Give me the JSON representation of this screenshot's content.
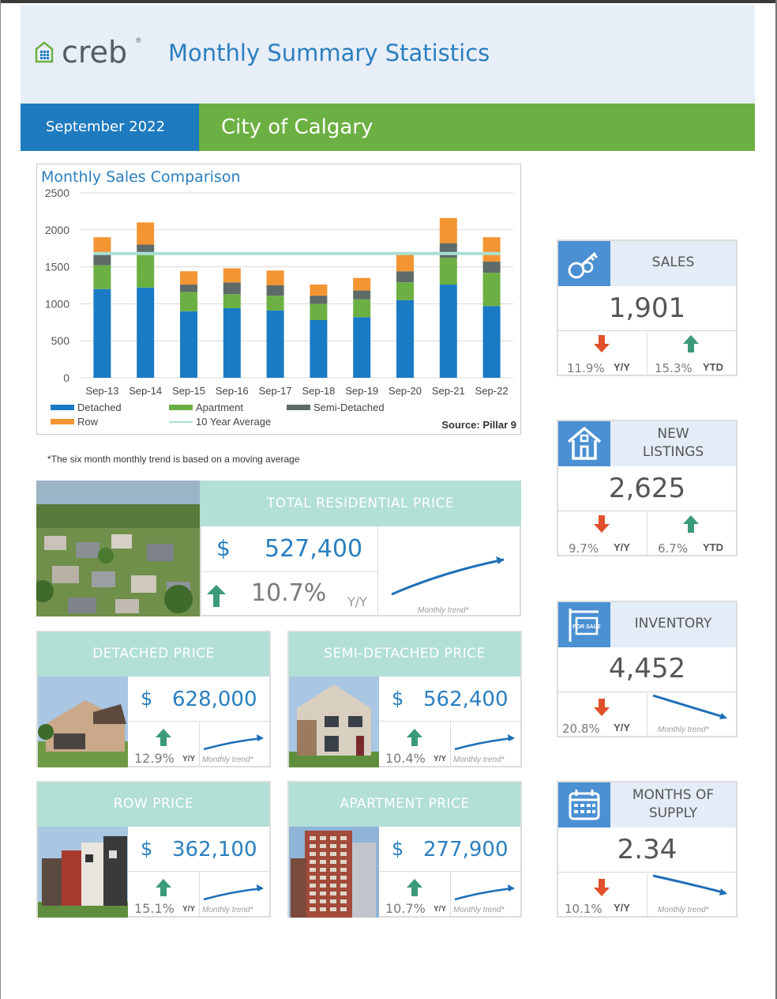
{
  "header": {
    "brand": "creb",
    "brand_mark": "®",
    "title": "Monthly Summary Statistics"
  },
  "band": {
    "date": "September 2022",
    "city": "City of Calgary"
  },
  "chart_data": {
    "type": "bar",
    "stacked": true,
    "title": "Monthly Sales Comparison",
    "categories": [
      "Sep-13",
      "Sep-14",
      "Sep-15",
      "Sep-16",
      "Sep-17",
      "Sep-18",
      "Sep-19",
      "Sep-20",
      "Sep-21",
      "Sep-22"
    ],
    "series": [
      {
        "name": "Detached",
        "color": "#1a7ac4",
        "values": [
          1200,
          1220,
          900,
          940,
          910,
          780,
          820,
          1050,
          1260,
          970
        ]
      },
      {
        "name": "Apartment",
        "color": "#6cb043",
        "values": [
          320,
          440,
          260,
          190,
          200,
          220,
          240,
          240,
          360,
          450
        ]
      },
      {
        "name": "Semi-Detached",
        "color": "#5e6b68",
        "values": [
          150,
          140,
          100,
          160,
          140,
          110,
          120,
          150,
          200,
          150
        ]
      },
      {
        "name": "Row",
        "color": "#f39532",
        "values": [
          230,
          300,
          180,
          190,
          200,
          150,
          170,
          240,
          340,
          330
        ]
      }
    ],
    "average": {
      "name": "10 Year Average",
      "color": "#a8e0d2",
      "value": 1680
    },
    "ylim": [
      0,
      2500
    ],
    "yticks": [
      0,
      500,
      1000,
      1500,
      2000,
      2500
    ],
    "grid": true,
    "legend_position": "bottom",
    "source": "Source: Pillar 9"
  },
  "footnote": "*The six month monthly trend is based on a moving average",
  "total": {
    "title": "TOTAL RESIDENTIAL PRICE",
    "currency": "$",
    "price": "527,400",
    "pct": "10.7%",
    "yy": "Y/Y",
    "trend_label": "Monthly trend*"
  },
  "cards": [
    {
      "title": "DETACHED PRICE",
      "currency": "$",
      "price": "628,000",
      "pct": "12.9%",
      "yy": "Y/Y",
      "trend_label": "Monthly trend*"
    },
    {
      "title": "SEMI-DETACHED PRICE",
      "currency": "$",
      "price": "562,400",
      "pct": "10.4%",
      "yy": "Y/Y",
      "trend_label": "Monthly trend*"
    },
    {
      "title": "ROW PRICE",
      "currency": "$",
      "price": "362,100",
      "pct": "15.1%",
      "yy": "Y/Y",
      "trend_label": "Monthly trend*"
    },
    {
      "title": "APARTMENT PRICE",
      "currency": "$",
      "price": "277,900",
      "pct": "10.7%",
      "yy": "Y/Y",
      "trend_label": "Monthly trend*"
    }
  ],
  "side": {
    "sales": {
      "title": "SALES",
      "value": "1,901",
      "yy_pct": "11.9%",
      "yy": "Y/Y",
      "ytd_pct": "15.3%",
      "ytd": "YTD",
      "icon": "keys-icon"
    },
    "listings": {
      "title_1": "NEW",
      "title_2": "LISTINGS",
      "value": "2,625",
      "yy_pct": "9.7%",
      "yy": "Y/Y",
      "ytd_pct": "6.7%",
      "ytd": "YTD",
      "icon": "house-icon"
    },
    "inventory": {
      "title": "INVENTORY",
      "value": "4,452",
      "yy_pct": "20.8%",
      "yy": "Y/Y",
      "trend_label": "Monthly trend*",
      "icon": "for-sale-sign-icon",
      "sign_text": "FOR SALE"
    },
    "supply": {
      "title_1": "MONTHS OF",
      "title_2": "SUPPLY",
      "value": "2.34",
      "yy_pct": "10.1%",
      "yy": "Y/Y",
      "trend_label": "Monthly trend*",
      "icon": "calendar-icon"
    }
  },
  "colors": {
    "blue": "#1e7bbf",
    "green": "#6cb043",
    "teal": "#b2dfd6",
    "up": "#3a9a7a",
    "down": "#e0502a"
  }
}
